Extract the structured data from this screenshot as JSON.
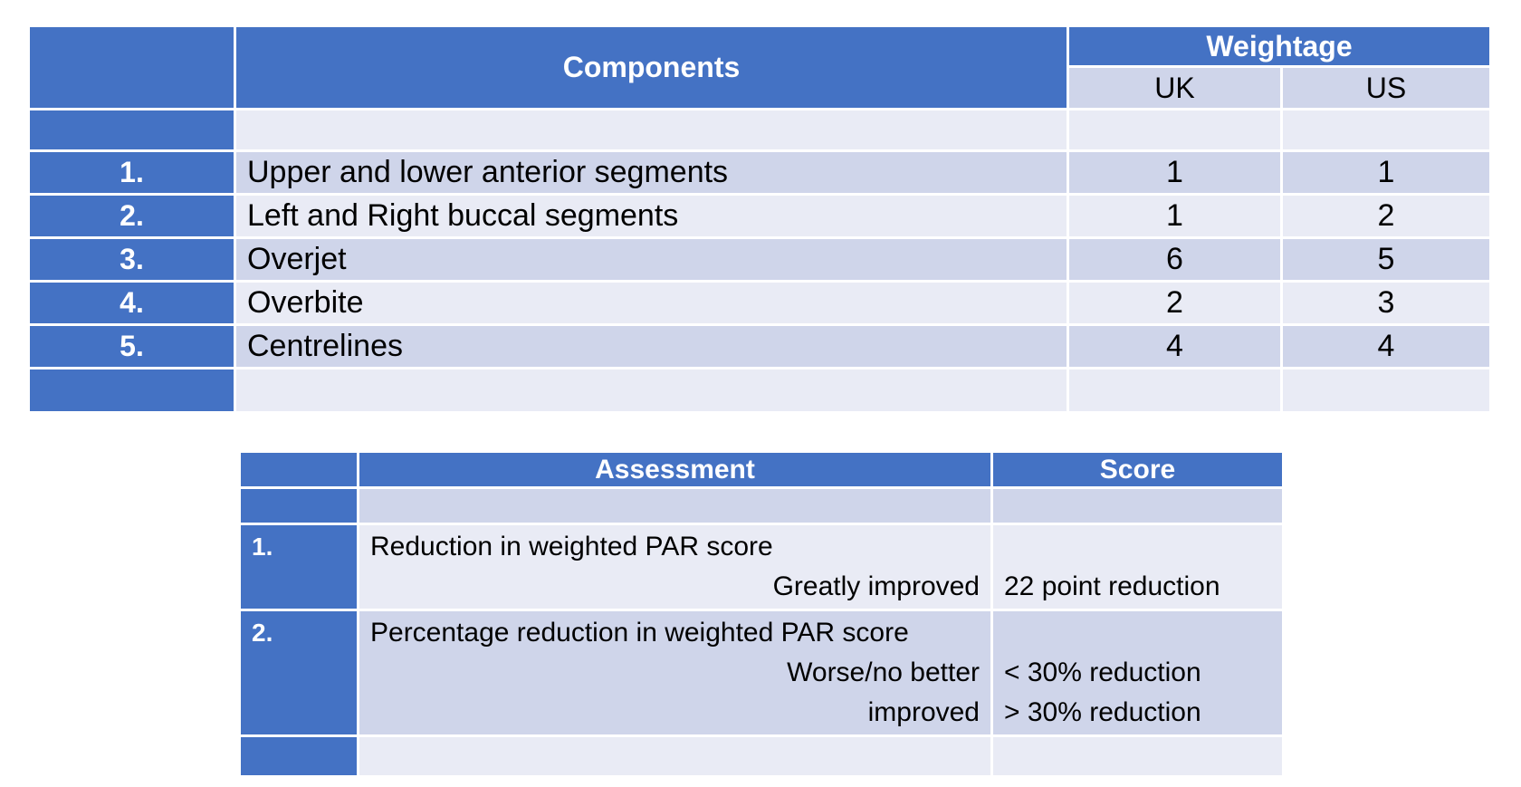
{
  "components_table": {
    "header": {
      "components": "Components",
      "weightage": "Weightage",
      "uk": "UK",
      "us": "US"
    },
    "rows": [
      {
        "num": "1.",
        "component": "Upper and lower anterior segments",
        "uk": "1",
        "us": "1"
      },
      {
        "num": "2.",
        "component": "Left and Right buccal segments",
        "uk": "1",
        "us": "2"
      },
      {
        "num": "3.",
        "component": "Overjet",
        "uk": "6",
        "us": "5"
      },
      {
        "num": "4.",
        "component": "Overbite",
        "uk": "2",
        "us": "3"
      },
      {
        "num": "5.",
        "component": "Centrelines",
        "uk": "4",
        "us": "4"
      }
    ]
  },
  "assessment_table": {
    "header": {
      "assessment": "Assessment",
      "score": "Score"
    },
    "rows": [
      {
        "num": "1.",
        "title": "Reduction in weighted PAR score",
        "items": [
          {
            "label": "Greatly improved",
            "score": "22 point reduction"
          }
        ]
      },
      {
        "num": "2.",
        "title": "Percentage reduction in weighted PAR score",
        "items": [
          {
            "label": "Worse/no better",
            "score": "< 30% reduction"
          },
          {
            "label": "improved",
            "score": "> 30% reduction"
          }
        ]
      }
    ]
  }
}
